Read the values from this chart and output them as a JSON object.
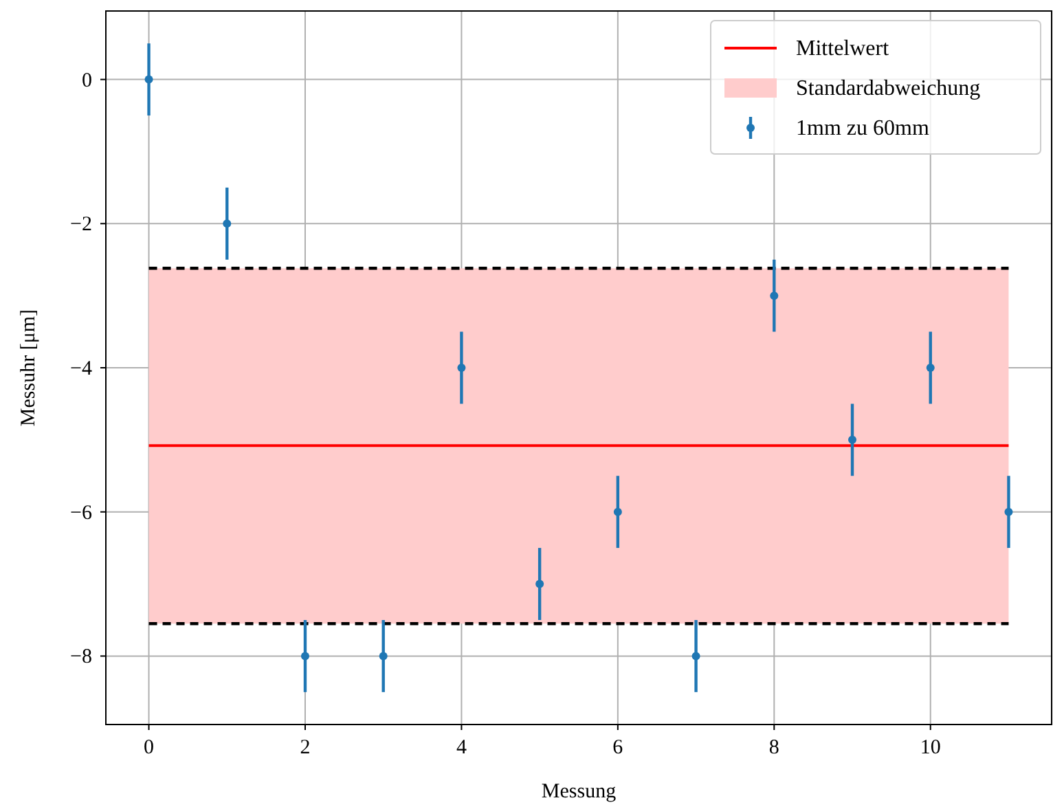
{
  "chart_data": {
    "type": "scatter",
    "xlabel": "Messung",
    "ylabel": "Messuhr [μm]",
    "xlim": [
      -0.55,
      11.55
    ],
    "ylim": [
      -8.95,
      0.95
    ],
    "xticks": [
      0,
      2,
      4,
      6,
      8,
      10
    ],
    "yticks": [
      {
        "value": -8,
        "label": "−8"
      },
      {
        "value": -6,
        "label": "−6"
      },
      {
        "value": -4,
        "label": "−4"
      },
      {
        "value": -2,
        "label": "−2"
      },
      0
    ],
    "grid": true,
    "legend": "top right",
    "series": [
      {
        "name": "Mittelwert",
        "type": "line",
        "color": "#ff0000",
        "marker": "none",
        "line_style": "solid",
        "x": [
          0,
          11
        ],
        "values": [
          -5.08,
          -5.08
        ]
      },
      {
        "type": "line",
        "color": "#000000",
        "marker": "none",
        "line_style": "dashed",
        "x": [
          0,
          11
        ],
        "values": [
          -2.62,
          -2.62
        ]
      },
      {
        "type": "line",
        "color": "#000000",
        "marker": "none",
        "line_style": "dashed",
        "x": [
          0,
          11
        ],
        "values": [
          -7.55,
          -7.55
        ]
      },
      {
        "name": "1mm zu 60mm",
        "color": "#1f77b4",
        "marker": "circle",
        "x": [
          0,
          1,
          2,
          3,
          4,
          5,
          6,
          7,
          8,
          9,
          10,
          11
        ],
        "values": [
          0,
          -2,
          -8,
          -8,
          -4,
          -7,
          -6,
          -8,
          -3,
          -5,
          -4,
          -6
        ],
        "errors": [
          0.5,
          0.5,
          0.5,
          0.5,
          0.5,
          0.5,
          0.5,
          0.5,
          0.5,
          0.5,
          0.5,
          0.5
        ]
      }
    ],
    "bands": [
      {
        "axis": "y",
        "from": -7.55,
        "to": -2.62,
        "label": "Standardabweichung",
        "color": "#ffcccc"
      }
    ]
  }
}
